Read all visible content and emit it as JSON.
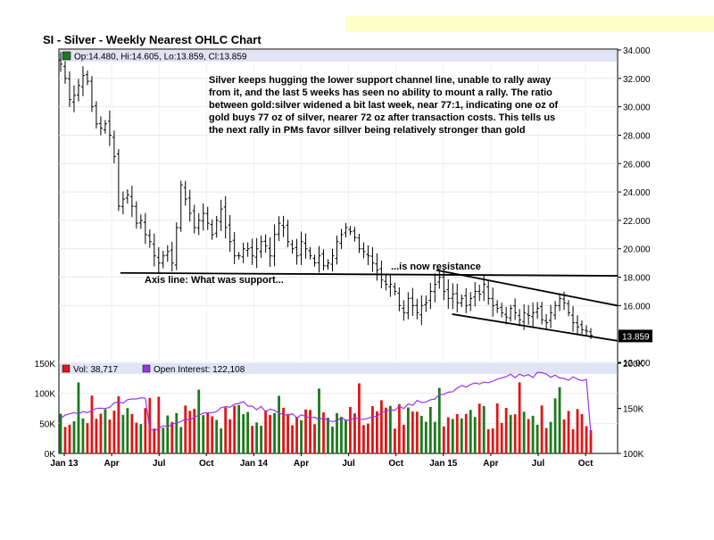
{
  "title": "SI - Silver - Weekly Nearest OHLC Chart",
  "colors": {
    "header_bg": "#e0e4f4",
    "top_banner": "#ffffc8",
    "up_bar": "#1f7a1f",
    "down_bar": "#e01010",
    "volume_up": "#1a7a1a",
    "volume_down": "#e01515",
    "open_interest": "#9933ee",
    "price_bar": "#000000"
  },
  "price_panel": {
    "legend": "Op:14.480, Hi:14.605, Lo:13.859, Cl:13.859",
    "last_price_label": "13.859",
    "ylim": [
      12,
      34
    ],
    "y_ticks": [
      "34.000",
      "32.000",
      "30.000",
      "28.000",
      "26.000",
      "24.000",
      "22.000",
      "20.000",
      "18.000",
      "16.000",
      "12.000"
    ],
    "annotations": [
      {
        "text": "Silver keeps hugging the lower support channel line, unable to rally away"
      },
      {
        "text": "from it, and the last 5 weeks has seen no ability to mount a rally.  The ratio"
      },
      {
        "text": "between gold:silver widened a bit last week, near 77:1, indicating one oz of"
      },
      {
        "text": "gold buys 77 oz of silver, nearer 72 oz after transaction costs.  This tells us"
      },
      {
        "text": "the next rally in PMs favor sillver being relatively stronger than gold"
      },
      {
        "text": "...is now resistance"
      },
      {
        "text": "Axis line:  What was support..."
      }
    ]
  },
  "volume_panel": {
    "vol_legend": "Vol: 38,717",
    "oi_legend": "Open Interest: 122,108",
    "left_ticks": [
      "150K",
      "100K",
      "50K",
      "0K"
    ],
    "right_ticks": [
      "200K",
      "150K",
      "100K"
    ],
    "vol_ylim": [
      0,
      150000
    ],
    "oi_ylim": [
      100000,
      200000
    ]
  },
  "x_axis": {
    "labels": [
      "Jan 13",
      "Apr",
      "Jul",
      "Oct",
      "Jan 14",
      "Apr",
      "Jul",
      "Oct",
      "Jan 15",
      "Apr",
      "Jul",
      "Oct"
    ]
  },
  "chart_data": {
    "type": "ohlc",
    "title": "SI - Silver - Weekly Nearest OHLC Chart",
    "x_range": [
      "2013-01",
      "2015-12"
    ],
    "price_ylim": [
      12,
      34
    ],
    "last_bar": {
      "open": 14.48,
      "high": 14.605,
      "low": 13.859,
      "close": 13.859
    },
    "weekly_close_approx": [
      33.0,
      32.0,
      30.5,
      30.8,
      31.5,
      32.2,
      31.8,
      30.0,
      28.8,
      28.5,
      28.8,
      28.0,
      26.5,
      23.0,
      23.5,
      23.8,
      23.0,
      21.8,
      22.0,
      21.0,
      20.5,
      19.5,
      19.0,
      19.5,
      19.8,
      19.0,
      21.5,
      24.5,
      23.5,
      22.5,
      21.5,
      22.0,
      22.5,
      21.8,
      21.0,
      22.0,
      22.8,
      21.5,
      20.5,
      19.5,
      19.5,
      20.0,
      20.0,
      19.5,
      20.0,
      20.5,
      20.2,
      19.5,
      21.0,
      21.8,
      21.5,
      20.5,
      20.0,
      19.5,
      20.5,
      20.0,
      19.5,
      19.0,
      19.5,
      18.8,
      19.0,
      19.5,
      20.5,
      21.0,
      21.5,
      21.2,
      20.8,
      20.0,
      19.8,
      19.5,
      19.0,
      18.5,
      17.8,
      17.5,
      17.5,
      17.0,
      16.0,
      15.5,
      16.5,
      16.0,
      15.5,
      16.0,
      16.2,
      17.0,
      17.5,
      18.0,
      17.0,
      16.5,
      16.8,
      16.2,
      16.5,
      16.0,
      16.5,
      17.0,
      16.8,
      17.5,
      16.5,
      16.0,
      15.8,
      15.5,
      15.2,
      15.8,
      15.5,
      15.0,
      15.5,
      15.3,
      15.5,
      15.8,
      15.0,
      14.8,
      15.5,
      16.0,
      16.5,
      16.2,
      15.5,
      14.8,
      14.5,
      14.3,
      14.2,
      13.9
    ],
    "trendlines": [
      {
        "name": "axis line",
        "from": [
          "2013-05",
          18.3
        ],
        "to": [
          "2015-12",
          18.1
        ]
      },
      {
        "name": "upper channel",
        "from": [
          "2015-01",
          18.5
        ],
        "to": [
          "2015-12",
          16.1
        ]
      },
      {
        "name": "lower channel",
        "from": [
          "2015-02",
          15.4
        ],
        "to": [
          "2015-12",
          13.6
        ]
      }
    ],
    "volume": {
      "vol_ylim": [
        0,
        150000
      ],
      "oi_ylim": [
        100000,
        200000
      ],
      "last_volume": 38717,
      "last_open_interest": 122108
    }
  }
}
